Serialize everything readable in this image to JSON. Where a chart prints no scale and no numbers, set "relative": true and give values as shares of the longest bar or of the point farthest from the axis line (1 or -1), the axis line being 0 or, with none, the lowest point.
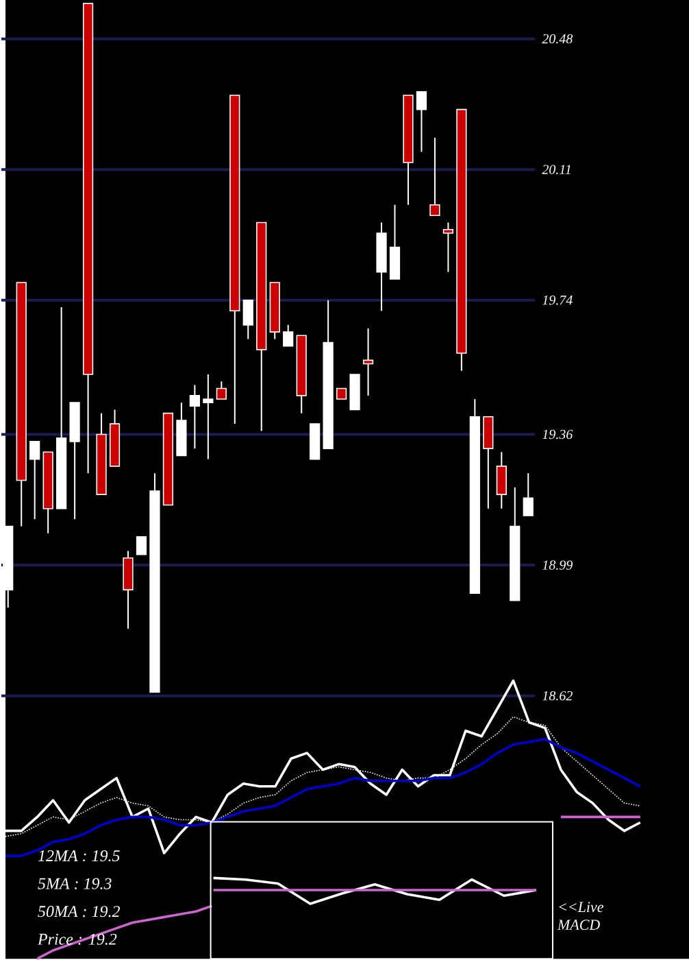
{
  "chart_data": [
    {
      "type": "candlestick",
      "categories": [
        null,
        null,
        null,
        null,
        null,
        null,
        null,
        null,
        null,
        null,
        null,
        null,
        null,
        null,
        null,
        null,
        null,
        null,
        null,
        null,
        null,
        null,
        null,
        null,
        null,
        null,
        null,
        null,
        null,
        null,
        null,
        null,
        null,
        null,
        null,
        null,
        null,
        null,
        null,
        null
      ],
      "ohlc": [
        [
          18.92,
          19.1,
          18.87,
          19.1
        ],
        [
          19.79,
          19.79,
          19.1,
          19.23
        ],
        [
          19.29,
          19.34,
          19.12,
          19.34
        ],
        [
          19.31,
          19.31,
          19.08,
          19.15
        ],
        [
          19.15,
          19.72,
          19.15,
          19.35
        ],
        [
          19.34,
          19.45,
          19.12,
          19.45
        ],
        [
          20.58,
          20.58,
          19.25,
          19.53
        ],
        [
          19.36,
          19.42,
          19.19,
          19.19
        ],
        [
          19.39,
          19.43,
          19.27,
          19.27
        ],
        [
          19.01,
          19.03,
          18.81,
          18.92
        ],
        [
          19.02,
          19.07,
          19.02,
          19.07
        ],
        [
          18.63,
          19.25,
          18.63,
          19.2
        ],
        [
          19.42,
          19.42,
          19.16,
          19.16
        ],
        [
          19.3,
          19.45,
          19.3,
          19.4
        ],
        [
          19.44,
          19.5,
          19.32,
          19.47
        ],
        [
          19.45,
          19.53,
          19.29,
          19.46
        ],
        [
          19.49,
          19.51,
          19.46,
          19.46
        ],
        [
          20.32,
          20.32,
          19.39,
          19.71
        ],
        [
          19.67,
          19.74,
          19.63,
          19.74
        ],
        [
          19.96,
          19.96,
          19.37,
          19.6
        ],
        [
          19.79,
          19.79,
          19.63,
          19.65
        ],
        [
          19.61,
          19.67,
          19.61,
          19.65
        ],
        [
          19.64,
          19.64,
          19.42,
          19.47
        ],
        [
          19.29,
          19.39,
          19.29,
          19.39
        ],
        [
          19.32,
          19.74,
          19.32,
          19.62
        ],
        [
          19.49,
          19.49,
          19.46,
          19.46
        ],
        [
          19.43,
          19.53,
          19.43,
          19.53
        ],
        [
          19.57,
          19.66,
          19.47,
          19.56
        ],
        [
          19.82,
          19.96,
          19.71,
          19.93
        ],
        [
          19.8,
          20.01,
          19.8,
          19.89
        ],
        [
          20.32,
          20.32,
          20.01,
          20.13
        ],
        [
          20.28,
          20.33,
          20.16,
          20.33
        ],
        [
          20.01,
          20.2,
          19.98,
          19.98
        ],
        [
          19.94,
          19.96,
          19.82,
          19.93
        ],
        [
          20.28,
          20.28,
          19.54,
          19.59
        ],
        [
          18.91,
          19.46,
          18.91,
          19.41
        ],
        [
          19.41,
          19.41,
          19.15,
          19.32
        ],
        [
          19.27,
          19.31,
          19.15,
          19.19
        ],
        [
          18.89,
          19.21,
          18.89,
          19.1
        ],
        [
          19.13,
          19.25,
          19.13,
          19.18
        ]
      ],
      "ylim": [
        18.62,
        20.59
      ],
      "yticks": [
        18.62,
        18.99,
        19.36,
        19.74,
        20.11,
        20.48
      ],
      "grid": "y"
    },
    {
      "type": "line",
      "relative": true,
      "categories": [
        null,
        null,
        null,
        null,
        null,
        null,
        null,
        null,
        null,
        null,
        null,
        null,
        null,
        null,
        null,
        null,
        null,
        null,
        null,
        null,
        null,
        null,
        null,
        null,
        null,
        null,
        null,
        null,
        null,
        null,
        null,
        null,
        null,
        null,
        null,
        null,
        null,
        null,
        null,
        null,
        null
      ],
      "series": [
        {
          "color": "#ffffff",
          "values": [
            0.46,
            0.46,
            0.51,
            0.57,
            0.49,
            0.57,
            0.61,
            0.65,
            0.51,
            0.54,
            0.38,
            0.45,
            0.51,
            0.49,
            0.59,
            0.63,
            0.62,
            0.62,
            0.72,
            0.74,
            0.68,
            0.7,
            0.69,
            0.63,
            0.59,
            0.68,
            0.62,
            0.66,
            0.66,
            0.82,
            0.8,
            0.9,
            1.0,
            0.85,
            0.83,
            0.68,
            0.6,
            0.56,
            0.5,
            0.46,
            0.49
          ]
        },
        {
          "color": "#ffffff",
          "line_style": "dotted",
          "values": [
            0.44,
            0.45,
            0.48,
            0.51,
            0.5,
            0.53,
            0.56,
            0.58,
            0.56,
            0.55,
            0.51,
            0.5,
            0.5,
            0.49,
            0.52,
            0.56,
            0.58,
            0.59,
            0.64,
            0.67,
            0.68,
            0.69,
            0.68,
            0.67,
            0.65,
            0.64,
            0.65,
            0.65,
            0.68,
            0.72,
            0.77,
            0.81,
            0.87,
            0.85,
            0.84,
            0.76,
            0.71,
            0.66,
            0.61,
            0.56,
            0.55
          ]
        },
        {
          "color": "#0000cc",
          "values": [
            0.37,
            0.37,
            0.39,
            0.42,
            0.43,
            0.45,
            0.48,
            0.5,
            0.51,
            0.51,
            0.5,
            0.48,
            0.48,
            0.49,
            0.51,
            0.53,
            0.54,
            0.55,
            0.58,
            0.61,
            0.62,
            0.63,
            0.65,
            0.64,
            0.64,
            0.64,
            0.64,
            0.65,
            0.65,
            0.67,
            0.7,
            0.74,
            0.77,
            0.78,
            0.79,
            0.76,
            0.74,
            0.71,
            0.68,
            0.65,
            0.62
          ]
        },
        {
          "color": "#cc66cc",
          "values": [
            null,
            null,
            0.0,
            0.03,
            0.05,
            0.07,
            0.09,
            0.11,
            0.13,
            0.14,
            0.15,
            0.16,
            0.17,
            0.19,
            null,
            null,
            null,
            null,
            null,
            null,
            null,
            null,
            null,
            null,
            null,
            null,
            null,
            null,
            null,
            null,
            null,
            null,
            null,
            null,
            null,
            0.51,
            0.51,
            0.51,
            0.51,
            0.51,
            0.51
          ]
        }
      ],
      "annotations": [
        "12MA : 19.5",
        "5MA : 19.3",
        "50MA : 19.2",
        "Price : 19.2"
      ]
    },
    {
      "type": "line",
      "relative": true,
      "categories": [
        null,
        null,
        null,
        null,
        null,
        null,
        null,
        null,
        null,
        null,
        null
      ],
      "series": [
        {
          "color": "#ffffff",
          "values": [
            1.0,
            0.98,
            0.93,
            0.68,
            0.81,
            0.92,
            0.8,
            0.73,
            0.98,
            0.78,
            0.85
          ]
        },
        {
          "color": "#cc66cc",
          "values": [
            0.85,
            0.85,
            0.85,
            0.85,
            0.85,
            0.85,
            0.85,
            0.85,
            0.85,
            0.85,
            0.85
          ]
        }
      ],
      "annotations": [
        "<<Live MACD"
      ]
    }
  ]
}
